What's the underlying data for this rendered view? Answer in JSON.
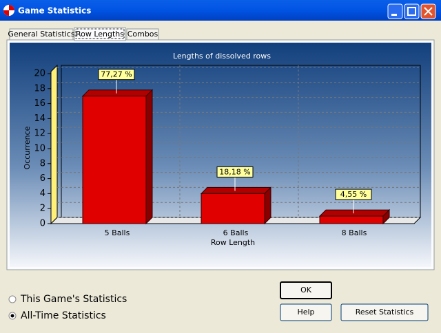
{
  "window": {
    "title": "Game Statistics"
  },
  "tabs": [
    "General Statistics",
    "Row Lengths",
    "Combos"
  ],
  "active_tab": 1,
  "chart_data": {
    "type": "bar3d",
    "title": "Lengths of dissolved rows",
    "x_label": "Row Length",
    "y_label": "Occurrence",
    "categories": [
      "5 Balls",
      "6 Balls",
      "8 Balls"
    ],
    "values": [
      17,
      4,
      1
    ],
    "bar_labels": [
      "77,27 %",
      "18,18 %",
      "4,55 %"
    ],
    "color": "#e00000",
    "ylim": [
      0,
      20
    ],
    "yticks": [
      0,
      2,
      4,
      6,
      8,
      10,
      12,
      14,
      16,
      18,
      20
    ],
    "grid": true
  },
  "options": [
    "This Game's Statistics",
    "All-Time Statistics"
  ],
  "selected_option": 1,
  "buttons": [
    "OK",
    "Help",
    "Reset Statistics"
  ]
}
